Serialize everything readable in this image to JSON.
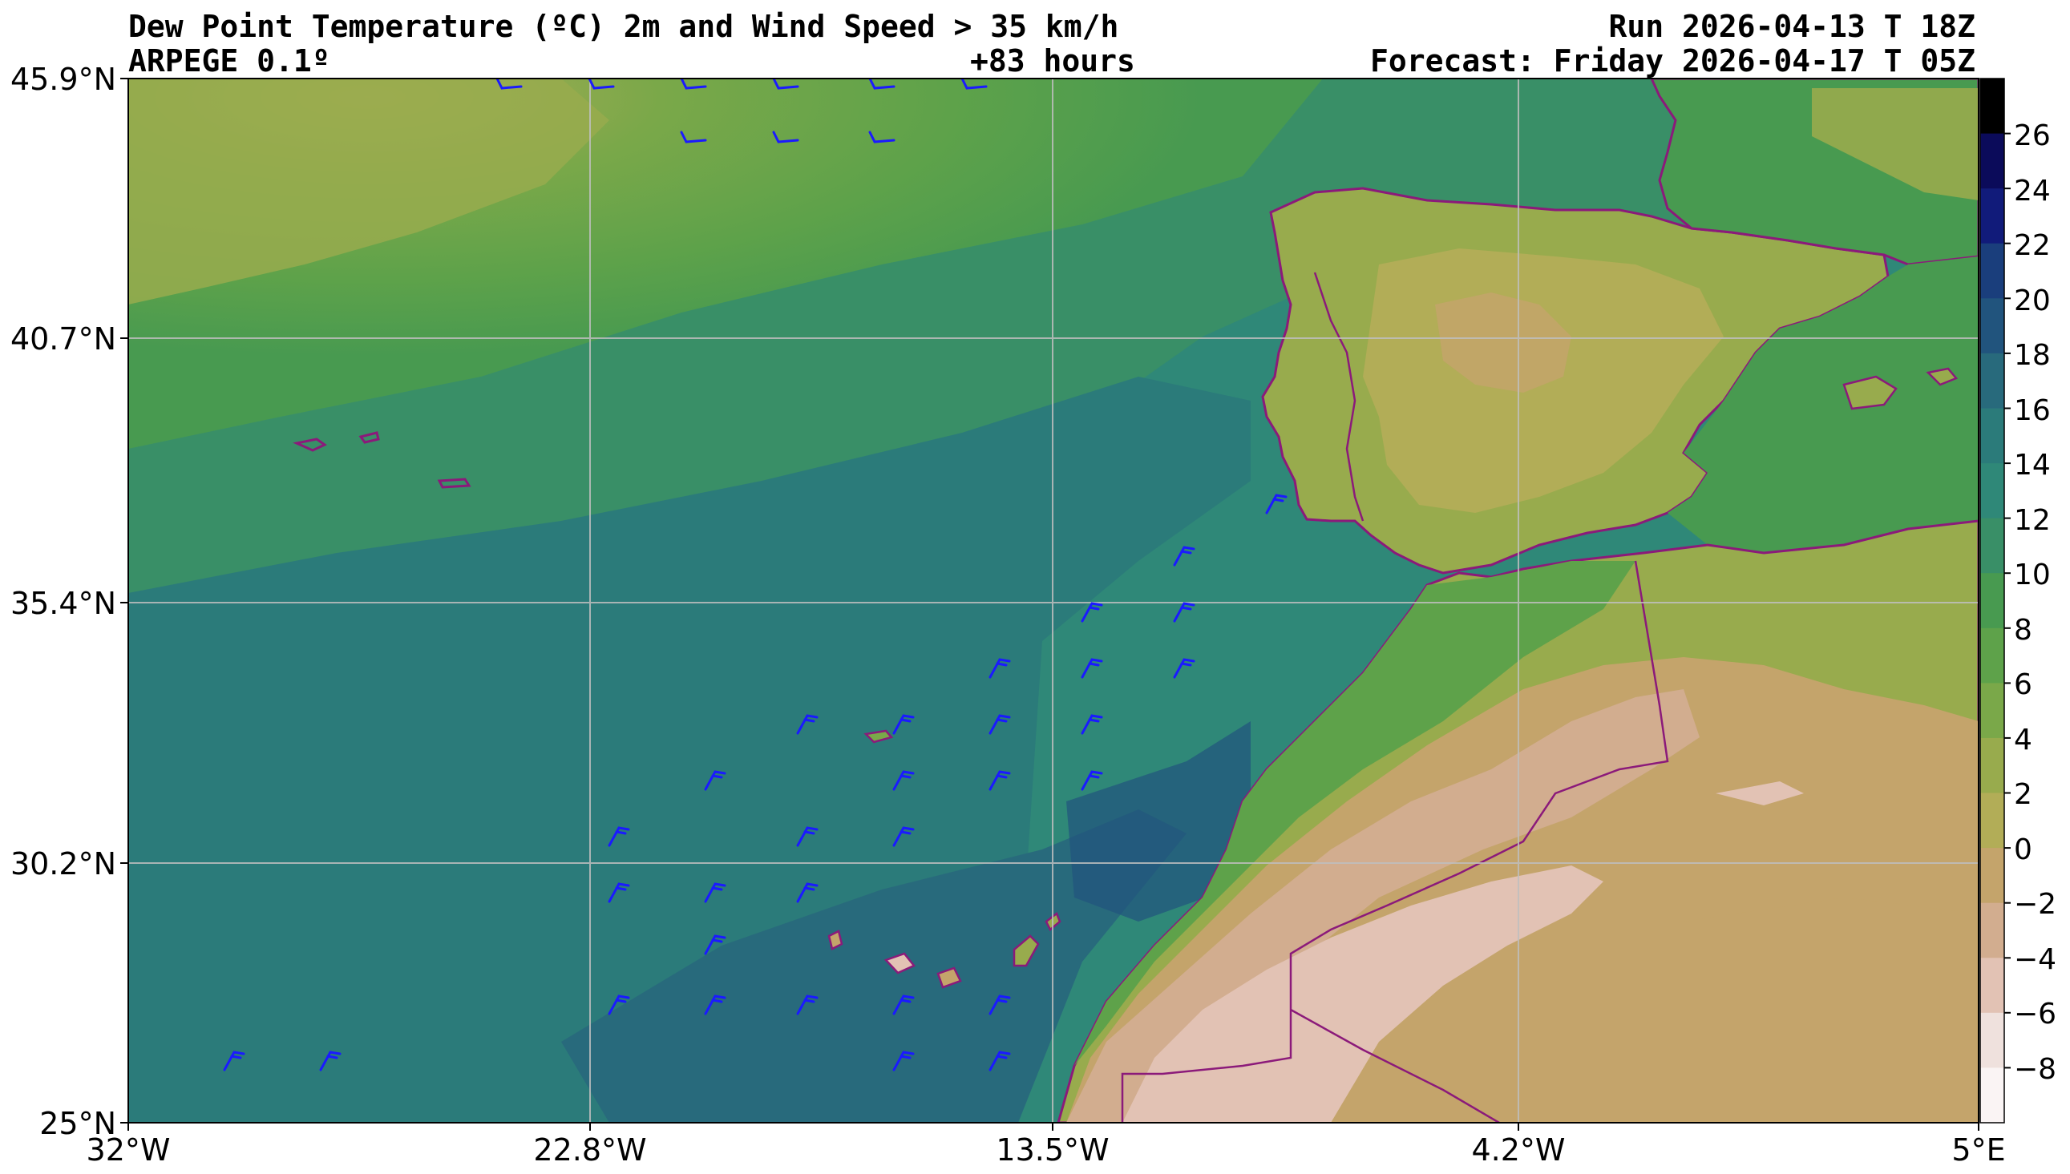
{
  "header": {
    "title": "Dew Point Temperature (ºC) 2m and Wind Speed > 35 km/h",
    "model": "ARPEGE 0.1º",
    "lead_time": "+83 hours",
    "run": "Run 2026-04-13 T 18Z",
    "forecast": "Forecast: Friday 2026-04-17 T 05Z"
  },
  "map": {
    "lat_ticks": [
      "45.9°N",
      "40.7°N",
      "35.4°N",
      "30.2°N",
      "25°N"
    ],
    "lon_ticks": [
      "32°W",
      "22.8°W",
      "13.5°W",
      "4.2°W",
      "5°E"
    ],
    "extent": {
      "lon_min": -32,
      "lon_max": 5,
      "lat_min": 25,
      "lat_max": 45.9
    },
    "grid": true,
    "wind_barb_color": "#1a1aff",
    "border_color": "#8b1a7a"
  },
  "colorbar": {
    "labels": [
      "26",
      "24",
      "22",
      "20",
      "18",
      "16",
      "14",
      "12",
      "10",
      "8",
      "6",
      "4",
      "2",
      "0",
      "−2",
      "−4",
      "−6",
      "−8"
    ],
    "colors": [
      "#000000",
      "#0b0b5a",
      "#111b7a",
      "#1a3e7c",
      "#21547d",
      "#286a7c",
      "#2b7b7a",
      "#2f8878",
      "#398f67",
      "#489a50",
      "#5ea24a",
      "#7aa849",
      "#98ab4d",
      "#b2ad57",
      "#c4a46b",
      "#d2ad8f",
      "#e2c2b4",
      "#efe1dd",
      "#faf4f4"
    ]
  }
}
